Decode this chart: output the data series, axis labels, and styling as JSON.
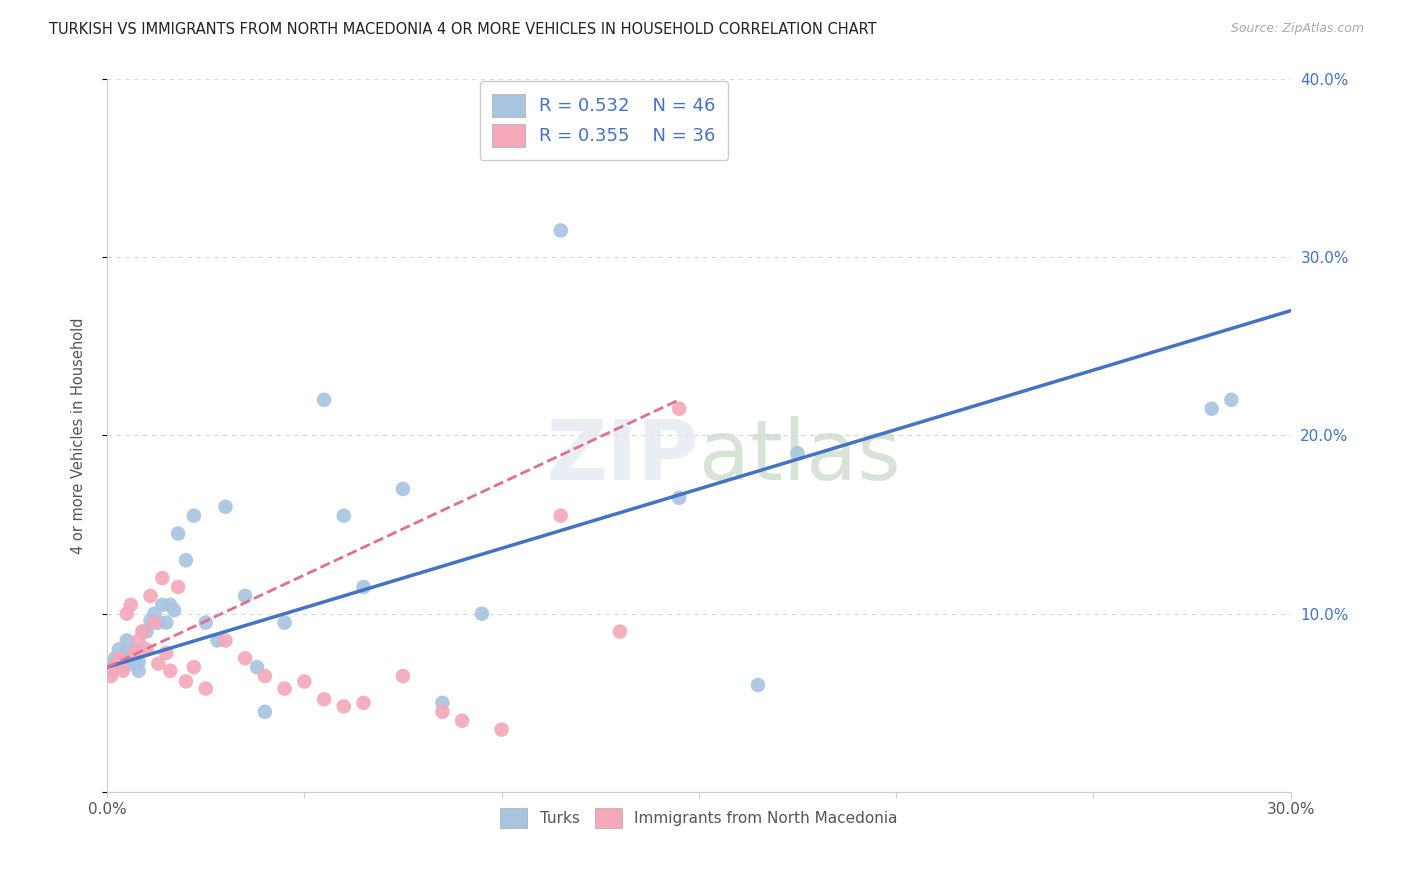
{
  "title": "TURKISH VS IMMIGRANTS FROM NORTH MACEDONIA 4 OR MORE VEHICLES IN HOUSEHOLD CORRELATION CHART",
  "source": "Source: ZipAtlas.com",
  "ylabel": "4 or more Vehicles in Household",
  "xlim": [
    0.0,
    0.3
  ],
  "ylim": [
    0.0,
    0.4
  ],
  "turks_x": [
    0.001,
    0.002,
    0.002,
    0.003,
    0.003,
    0.004,
    0.004,
    0.005,
    0.005,
    0.006,
    0.006,
    0.007,
    0.007,
    0.008,
    0.008,
    0.009,
    0.01,
    0.011,
    0.012,
    0.013,
    0.014,
    0.015,
    0.016,
    0.017,
    0.018,
    0.02,
    0.022,
    0.025,
    0.028,
    0.03,
    0.035,
    0.038,
    0.04,
    0.045,
    0.055,
    0.06,
    0.065,
    0.075,
    0.085,
    0.095,
    0.115,
    0.145,
    0.165,
    0.175,
    0.28,
    0.285
  ],
  "turks_y": [
    0.068,
    0.072,
    0.075,
    0.08,
    0.076,
    0.07,
    0.073,
    0.085,
    0.078,
    0.076,
    0.072,
    0.08,
    0.074,
    0.073,
    0.068,
    0.09,
    0.09,
    0.096,
    0.1,
    0.095,
    0.105,
    0.095,
    0.105,
    0.102,
    0.145,
    0.13,
    0.155,
    0.095,
    0.085,
    0.16,
    0.11,
    0.07,
    0.045,
    0.095,
    0.22,
    0.155,
    0.115,
    0.17,
    0.05,
    0.1,
    0.315,
    0.165,
    0.06,
    0.19,
    0.215,
    0.22
  ],
  "nmk_x": [
    0.001,
    0.002,
    0.003,
    0.003,
    0.004,
    0.005,
    0.006,
    0.007,
    0.008,
    0.009,
    0.01,
    0.011,
    0.012,
    0.013,
    0.014,
    0.015,
    0.016,
    0.018,
    0.02,
    0.022,
    0.025,
    0.03,
    0.035,
    0.04,
    0.045,
    0.05,
    0.055,
    0.06,
    0.065,
    0.075,
    0.085,
    0.09,
    0.1,
    0.115,
    0.13,
    0.145
  ],
  "nmk_y": [
    0.065,
    0.07,
    0.075,
    0.072,
    0.068,
    0.1,
    0.105,
    0.078,
    0.085,
    0.09,
    0.08,
    0.11,
    0.095,
    0.072,
    0.12,
    0.078,
    0.068,
    0.115,
    0.062,
    0.07,
    0.058,
    0.085,
    0.075,
    0.065,
    0.058,
    0.062,
    0.052,
    0.048,
    0.05,
    0.065,
    0.045,
    0.04,
    0.035,
    0.155,
    0.09,
    0.215
  ],
  "turks_line": [
    0.0,
    0.3,
    0.07,
    0.27
  ],
  "nmk_line": [
    0.0,
    0.145,
    0.07,
    0.22
  ],
  "turks_R": 0.532,
  "turks_N": 46,
  "nmk_R": 0.355,
  "nmk_N": 36,
  "turks_color": "#a8c4e0",
  "nmk_color": "#f4a8b8",
  "turks_line_color": "#4472c4",
  "nmk_line_color": "#e07090",
  "legend_text_color": "#4472c4",
  "watermark_zip": "ZIP",
  "watermark_atlas": "atlas",
  "background_color": "#ffffff",
  "grid_color": "#d8d8d8",
  "ytick_positions": [
    0.0,
    0.1,
    0.2,
    0.3,
    0.4
  ],
  "ytick_labels_right": [
    "",
    "10.0%",
    "20.0%",
    "30.0%",
    "40.0%"
  ],
  "xtick_positions": [
    0.0,
    0.05,
    0.1,
    0.15,
    0.2,
    0.25,
    0.3
  ],
  "xtick_labels": [
    "0.0%",
    "",
    "",
    "",
    "",
    "",
    "30.0%"
  ]
}
